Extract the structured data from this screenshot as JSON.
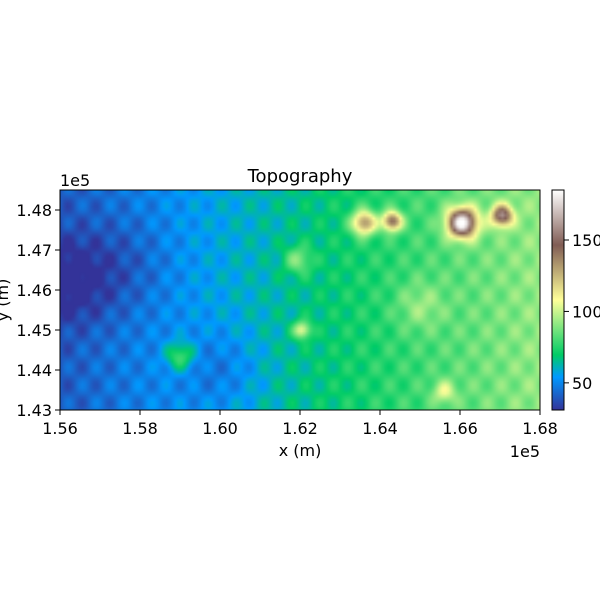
{
  "chart_data": {
    "type": "heatmap",
    "title": "Topography",
    "xlabel": "x (m)",
    "ylabel": "y (m)",
    "x_offset_label": "1e5",
    "y_offset_label": "1e5",
    "xlim": [
      1.56,
      1.68
    ],
    "ylim": [
      1.43,
      1.485
    ],
    "x_ticks": [
      "1.56",
      "1.58",
      "1.60",
      "1.62",
      "1.64",
      "1.66",
      "1.68"
    ],
    "x_tick_values": [
      1.56,
      1.58,
      1.6,
      1.62,
      1.64,
      1.66,
      1.68
    ],
    "y_ticks": [
      "1.43",
      "1.44",
      "1.45",
      "1.46",
      "1.47",
      "1.48"
    ],
    "y_tick_values": [
      1.43,
      1.44,
      1.45,
      1.46,
      1.47,
      1.48
    ],
    "colorbar": {
      "colormap": "terrain",
      "range": [
        31,
        185
      ],
      "tick_labels": [
        "50",
        "100",
        "150"
      ],
      "tick_values": [
        50,
        100,
        150
      ]
    },
    "grid": false,
    "regions": [
      {
        "area": "far west",
        "x": 1.562,
        "y": 1.46,
        "value": 35
      },
      {
        "area": "west lowland",
        "x": 1.575,
        "y": 1.465,
        "value": 45
      },
      {
        "area": "central basin",
        "x": 1.6,
        "y": 1.44,
        "value": 55
      },
      {
        "area": "central",
        "x": 1.615,
        "y": 1.46,
        "value": 65
      },
      {
        "area": "southwest knoll",
        "x": 1.59,
        "y": 1.443,
        "value": 95
      },
      {
        "area": "central knoll",
        "x": 1.62,
        "y": 1.467,
        "value": 92
      },
      {
        "area": "small central peak",
        "x": 1.62,
        "y": 1.45,
        "value": 110
      },
      {
        "area": "east plateau",
        "x": 1.655,
        "y": 1.455,
        "value": 95
      },
      {
        "area": "northeast hill 1",
        "x": 1.636,
        "y": 1.4768,
        "value": 145
      },
      {
        "area": "northeast hill 2",
        "x": 1.643,
        "y": 1.4772,
        "value": 150
      },
      {
        "area": "northeast summit",
        "x": 1.6605,
        "y": 1.4768,
        "value": 183
      },
      {
        "area": "northeast hill 3",
        "x": 1.6705,
        "y": 1.4786,
        "value": 152
      },
      {
        "area": "southeast knoll",
        "x": 1.6565,
        "y": 1.4345,
        "value": 100
      }
    ]
  }
}
